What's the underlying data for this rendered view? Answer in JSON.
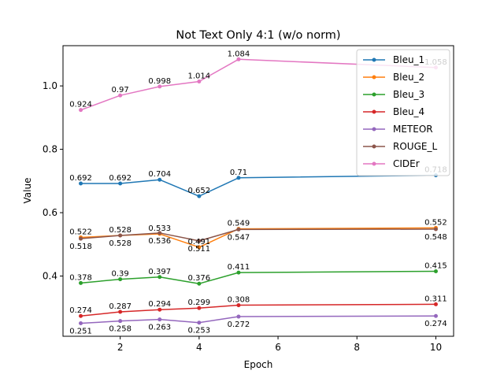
{
  "chart_data": {
    "type": "line",
    "title": "Not Text Only 4:1 (w/o norm)",
    "xlabel": "Epoch",
    "ylabel": "Value",
    "x": [
      1,
      2,
      3,
      4,
      5,
      10
    ],
    "xlim": [
      0.55,
      10.45
    ],
    "ylim": [
      0.21,
      1.127
    ],
    "xticks": [
      2,
      4,
      6,
      8,
      10
    ],
    "yticks": [
      0.4,
      0.6,
      0.8,
      1.0
    ],
    "ytick_labels": [
      "0.4",
      "0.6",
      "0.8",
      "1.0"
    ],
    "grid": false,
    "legend_position": "top-right",
    "series": [
      {
        "name": "Bleu_1",
        "color": "#1f77b4",
        "values": [
          0.692,
          0.692,
          0.704,
          0.652,
          0.71,
          0.718
        ],
        "labels": [
          "0.692",
          "0.692",
          "0.704",
          "0.652",
          "0.71",
          "0.718"
        ]
      },
      {
        "name": "Bleu_2",
        "color": "#ff7f0e",
        "values": [
          0.522,
          0.528,
          0.533,
          0.491,
          0.549,
          0.552
        ],
        "labels": [
          "0.522",
          "0.528",
          "0.533",
          "0.491",
          "0.549",
          "0.552"
        ]
      },
      {
        "name": "Bleu_3",
        "color": "#2ca02c",
        "values": [
          0.378,
          0.39,
          0.397,
          0.376,
          0.411,
          0.415
        ],
        "labels": [
          "0.378",
          "0.39",
          "0.397",
          "0.376",
          "0.411",
          "0.415"
        ]
      },
      {
        "name": "Bleu_4",
        "color": "#d62728",
        "values": [
          0.274,
          0.287,
          0.294,
          0.299,
          0.308,
          0.311
        ],
        "labels": [
          "0.274",
          "0.287",
          "0.294",
          "0.299",
          "0.308",
          "0.311"
        ]
      },
      {
        "name": "METEOR",
        "color": "#9467bd",
        "values": [
          0.251,
          0.258,
          0.263,
          0.253,
          0.272,
          0.274
        ],
        "labels": [
          "0.251",
          "0.258",
          "0.263",
          "0.253",
          "0.272",
          "0.274"
        ]
      },
      {
        "name": "ROUGE_L",
        "color": "#8c564b",
        "values": [
          0.518,
          0.528,
          0.536,
          0.511,
          0.547,
          0.548
        ],
        "labels": [
          "0.518",
          "0.528",
          "0.536",
          "0.511",
          "0.547",
          "0.548"
        ]
      },
      {
        "name": "CIDEr",
        "color": "#e377c2",
        "values": [
          0.924,
          0.97,
          0.998,
          1.014,
          1.084,
          1.058
        ],
        "labels": [
          "0.924",
          "0.97",
          "0.998",
          "1.014",
          "1.084",
          "1.058"
        ]
      }
    ]
  }
}
